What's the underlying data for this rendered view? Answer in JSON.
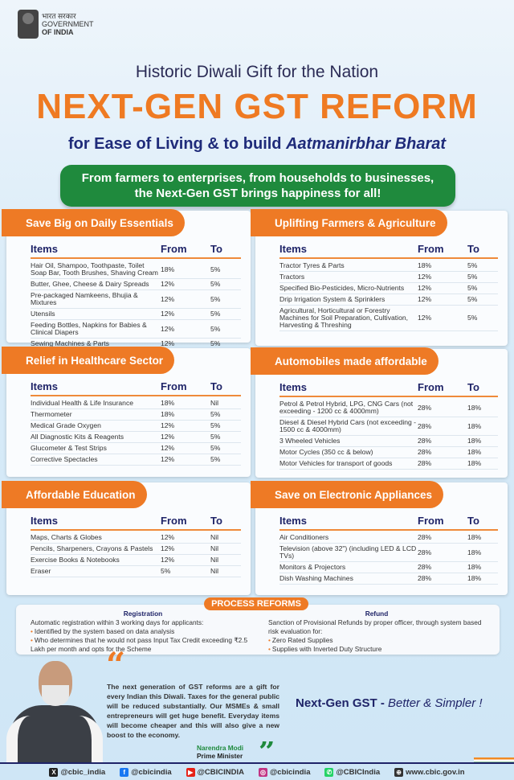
{
  "header": {
    "gov_hindi": "भारत सरकार",
    "gov_line1": "GOVERNMENT",
    "gov_line2": "OF INDIA",
    "title1": "Historic Diwali Gift for the Nation",
    "title2": "NEXT-GEN GST REFORM",
    "title3_prefix": "for Ease of Living & to build ",
    "title3_italic": "Aatmanirbhar Bharat",
    "banner_line1": "From farmers to enterprises, from households to businesses,",
    "banner_line2": "the Next-Gen GST brings happiness for all!"
  },
  "colors": {
    "accent": "#ee7a25",
    "green": "#1f8a3d",
    "navy": "#1f2468"
  },
  "columns": {
    "items": "Items",
    "from": "From",
    "to": "To"
  },
  "cards": [
    {
      "title": "Save Big on Daily Essentials",
      "rows": [
        [
          "Hair Oil, Shampoo, Toothpaste, Toilet Soap Bar, Tooth Brushes, Shaving Cream",
          "18%",
          "5%"
        ],
        [
          "Butter, Ghee, Cheese & Dairy Spreads",
          "12%",
          "5%"
        ],
        [
          "Pre-packaged Namkeens, Bhujia & Mixtures",
          "12%",
          "5%"
        ],
        [
          "Utensils",
          "12%",
          "5%"
        ],
        [
          "Feeding Bottles, Napkins for Babies & Clinical Diapers",
          "12%",
          "5%"
        ],
        [
          "Sewing Machines & Parts",
          "12%",
          "5%"
        ]
      ]
    },
    {
      "title": "Uplifting Farmers & Agriculture",
      "rows": [
        [
          "Tractor Tyres & Parts",
          "18%",
          "5%"
        ],
        [
          "Tractors",
          "12%",
          "5%"
        ],
        [
          "Specified Bio-Pesticides, Micro-Nutrients",
          "12%",
          "5%"
        ],
        [
          "Drip Irrigation System & Sprinklers",
          "12%",
          "5%"
        ],
        [
          "Agricultural, Horticultural or Forestry Machines for Soil Preparation, Cultivation, Harvesting & Threshing",
          "12%",
          "5%"
        ]
      ]
    },
    {
      "title": "Relief in Healthcare Sector",
      "rows": [
        [
          "Individual Health & Life Insurance",
          "18%",
          "Nil"
        ],
        [
          "Thermometer",
          "18%",
          "5%"
        ],
        [
          "Medical Grade Oxygen",
          "12%",
          "5%"
        ],
        [
          "All Diagnostic Kits & Reagents",
          "12%",
          "5%"
        ],
        [
          "Glucometer & Test Strips",
          "12%",
          "5%"
        ],
        [
          "Corrective Spectacles",
          "12%",
          "5%"
        ]
      ]
    },
    {
      "title": "Automobiles made affordable",
      "rows": [
        [
          "Petrol & Petrol Hybrid, LPG, CNG Cars (not exceeding - 1200 cc & 4000mm)",
          "28%",
          "18%"
        ],
        [
          "Diesel & Diesel Hybrid Cars (not exceeding - 1500 cc & 4000mm)",
          "28%",
          "18%"
        ],
        [
          "3 Wheeled Vehicles",
          "28%",
          "18%"
        ],
        [
          "Motor Cycles (350 cc & below)",
          "28%",
          "18%"
        ],
        [
          "Motor Vehicles for transport of goods",
          "28%",
          "18%"
        ]
      ]
    },
    {
      "title": "Affordable Education",
      "rows": [
        [
          "Maps, Charts & Globes",
          "12%",
          "Nil"
        ],
        [
          "Pencils, Sharpeners, Crayons & Pastels",
          "12%",
          "Nil"
        ],
        [
          "Exercise Books & Notebooks",
          "12%",
          "Nil"
        ],
        [
          "Eraser",
          "5%",
          "Nil"
        ]
      ]
    },
    {
      "title": "Save on Electronic Appliances",
      "rows": [
        [
          "Air Conditioners",
          "28%",
          "18%"
        ],
        [
          "Television (above 32\") (including LED & LCD TVs)",
          "28%",
          "18%"
        ],
        [
          "Monitors & Projectors",
          "28%",
          "18%"
        ],
        [
          "Dish Washing Machines",
          "28%",
          "18%"
        ]
      ]
    }
  ],
  "process_reforms": {
    "tag": "PROCESS REFORMS",
    "registration": {
      "heading": "Registration",
      "intro": "Automatic registration within 3 working days for applicants:",
      "bullets": [
        "Identified by the system based on data analysis",
        "Who determines that he would not pass Input Tax Credit exceeding ₹2.5 Lakh per month and opts for the Scheme"
      ]
    },
    "refund": {
      "heading": "Refund",
      "intro": "Sanction of Provisional Refunds by proper officer, through system based risk evaluation for:",
      "bullets": [
        "Zero Rated Supplies",
        "Supplies with Inverted Duty Structure"
      ]
    }
  },
  "quote": {
    "text": "The next generation of GST reforms are a gift for every Indian this Diwali. Taxes for the general public will be reduced substantially. Our MSMEs & small entrepreneurs will get huge benefit. Everyday items will become cheaper and this will also give a new boost to the economy.",
    "name": "Narendra Modi",
    "role": "Prime Minister",
    "open": "“",
    "close": "”"
  },
  "tagline": {
    "bold": "Next-Gen GST - ",
    "italic": "Better & Simpler !"
  },
  "footer": [
    {
      "icon": "x-icon",
      "glyph": "X",
      "color": "#222",
      "label": "@cbic_india"
    },
    {
      "icon": "facebook-icon",
      "glyph": "f",
      "color": "#1877f2",
      "label": "@cbicindia"
    },
    {
      "icon": "youtube-icon",
      "glyph": "▶",
      "color": "#e62117",
      "label": "@CBICINDIA"
    },
    {
      "icon": "instagram-icon",
      "glyph": "◎",
      "color": "#c13584",
      "label": "@cbicindia"
    },
    {
      "icon": "whatsapp-icon",
      "glyph": "✆",
      "color": "#25d366",
      "label": "@CBICIndia"
    },
    {
      "icon": "globe-icon",
      "glyph": "⊕",
      "color": "#333",
      "label": "www.cbic.gov.in"
    }
  ]
}
